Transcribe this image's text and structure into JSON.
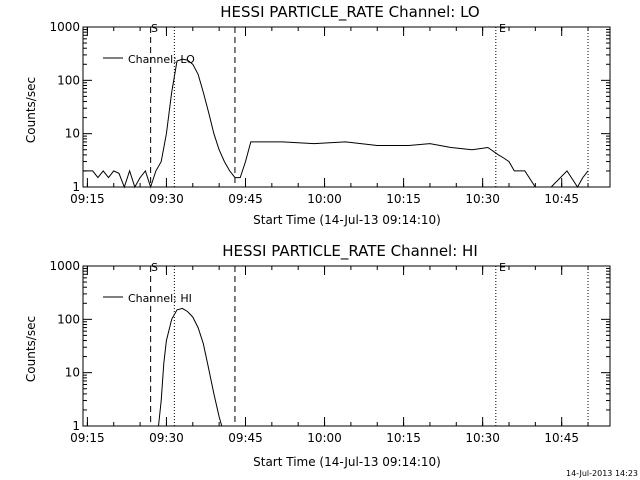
{
  "footer": "14-Jul-2013 14:23",
  "chart_data": [
    {
      "type": "line",
      "title": "HESSI PARTICLE_RATE Channel: LO",
      "xlabel": "Start Time (14-Jul-13 09:14:10)",
      "ylabel": "Counts/sec",
      "yscale": "log",
      "ylim": [
        1,
        1000
      ],
      "xlim": [
        "09:14:10",
        "10:54:10"
      ],
      "x_ticks": [
        "09:15",
        "09:30",
        "09:45",
        "10:00",
        "10:15",
        "10:30",
        "10:45"
      ],
      "y_ticks": [
        "1",
        "10",
        "100",
        "1000"
      ],
      "markers": [
        {
          "label": "S",
          "time": "09:27:00",
          "style": "dashed"
        },
        {
          "label": "",
          "time": "09:31:30",
          "style": "dotted"
        },
        {
          "label": "",
          "time": "09:43:00",
          "style": "dashed"
        },
        {
          "label": "E",
          "time": "10:32:30",
          "style": "dotted"
        },
        {
          "label": "",
          "time": "10:50:00",
          "style": "dotted"
        }
      ],
      "legend": {
        "label": "Channel: LO",
        "position": "top-left"
      },
      "series": [
        {
          "name": "Channel: LO",
          "x": [
            "09:14:10",
            "09:16:00",
            "09:17:00",
            "09:18:00",
            "09:19:00",
            "09:20:00",
            "09:21:00",
            "09:22:00",
            "09:23:00",
            "09:24:00",
            "09:25:00",
            "09:26:00",
            "09:27:00",
            "09:28:00",
            "09:29:00",
            "09:30:00",
            "09:31:00",
            "09:32:00",
            "09:33:00",
            "09:34:00",
            "09:35:00",
            "09:36:00",
            "09:37:00",
            "09:38:00",
            "09:39:00",
            "09:40:00",
            "09:41:00",
            "09:42:00",
            "09:43:00",
            "09:44:00",
            "09:45:00",
            "09:46:00",
            "09:48:00",
            "09:52:00",
            "09:58:00",
            "10:04:00",
            "10:10:00",
            "10:16:00",
            "10:20:00",
            "10:24:00",
            "10:28:00",
            "10:31:00",
            "10:33:00",
            "10:34:00",
            "10:35:00",
            "10:36:00",
            "10:38:00",
            "10:40:00",
            "10:43:00",
            "10:46:00",
            "10:48:00",
            "10:49:00",
            "10:50:00"
          ],
          "y": [
            2,
            2,
            1.5,
            2,
            1.5,
            2,
            1.8,
            1,
            2,
            1,
            1.5,
            2,
            1,
            2,
            3,
            10,
            60,
            230,
            250,
            240,
            200,
            130,
            60,
            25,
            10,
            5,
            3,
            2,
            1.5,
            1.5,
            3,
            7,
            7,
            7,
            6.5,
            7,
            6,
            6,
            6.5,
            5.5,
            5,
            5.5,
            4,
            3.5,
            3,
            2,
            2,
            1,
            1,
            2,
            1,
            1.5,
            2
          ]
        }
      ]
    },
    {
      "type": "line",
      "title": "HESSI PARTICLE_RATE Channel: HI",
      "xlabel": "Start Time (14-Jul-13 09:14:10)",
      "ylabel": "Counts/sec",
      "yscale": "log",
      "ylim": [
        1,
        1000
      ],
      "xlim": [
        "09:14:10",
        "10:54:10"
      ],
      "x_ticks": [
        "09:15",
        "09:30",
        "09:45",
        "10:00",
        "10:15",
        "10:30",
        "10:45"
      ],
      "y_ticks": [
        "1",
        "10",
        "100",
        "1000"
      ],
      "markers": [
        {
          "label": "S",
          "time": "09:27:00",
          "style": "dashed"
        },
        {
          "label": "",
          "time": "09:31:30",
          "style": "dotted"
        },
        {
          "label": "",
          "time": "09:43:00",
          "style": "dashed"
        },
        {
          "label": "E",
          "time": "10:32:30",
          "style": "dotted"
        },
        {
          "label": "",
          "time": "10:50:00",
          "style": "dotted"
        }
      ],
      "legend": {
        "label": "Channel: HI",
        "position": "top-left"
      },
      "series": [
        {
          "name": "Channel: HI",
          "x": [
            "09:28:30",
            "09:29:00",
            "09:29:30",
            "09:30:00",
            "09:31:00",
            "09:32:00",
            "09:33:00",
            "09:34:00",
            "09:35:00",
            "09:36:00",
            "09:37:00",
            "09:38:00",
            "09:39:00",
            "09:40:00",
            "09:40:30"
          ],
          "y": [
            1,
            3,
            15,
            40,
            100,
            150,
            160,
            140,
            110,
            70,
            35,
            12,
            4,
            1.5,
            1
          ]
        }
      ]
    }
  ]
}
